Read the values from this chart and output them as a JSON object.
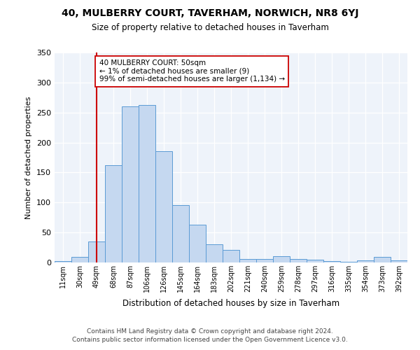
{
  "title1": "40, MULBERRY COURT, TAVERHAM, NORWICH, NR8 6YJ",
  "title2": "Size of property relative to detached houses in Taverham",
  "xlabel": "Distribution of detached houses by size in Taverham",
  "ylabel": "Number of detached properties",
  "categories": [
    "11sqm",
    "30sqm",
    "49sqm",
    "68sqm",
    "87sqm",
    "106sqm",
    "126sqm",
    "145sqm",
    "164sqm",
    "183sqm",
    "202sqm",
    "221sqm",
    "240sqm",
    "259sqm",
    "278sqm",
    "297sqm",
    "316sqm",
    "335sqm",
    "354sqm",
    "373sqm",
    "392sqm"
  ],
  "values": [
    2,
    9,
    35,
    162,
    260,
    262,
    185,
    96,
    63,
    30,
    21,
    6,
    6,
    10,
    6,
    5,
    2,
    1,
    3,
    9,
    4
  ],
  "bar_color": "#c5d8f0",
  "bar_edge_color": "#5b9bd5",
  "vline_x_idx": 2,
  "vline_color": "#cc0000",
  "annotation_text": "40 MULBERRY COURT: 50sqm\n← 1% of detached houses are smaller (9)\n99% of semi-detached houses are larger (1,134) →",
  "ylim": [
    0,
    350
  ],
  "yticks": [
    0,
    50,
    100,
    150,
    200,
    250,
    300,
    350
  ],
  "footer1": "Contains HM Land Registry data © Crown copyright and database right 2024.",
  "footer2": "Contains public sector information licensed under the Open Government Licence v3.0.",
  "bg_color": "#ffffff",
  "plot_bg_color": "#eef3fa"
}
